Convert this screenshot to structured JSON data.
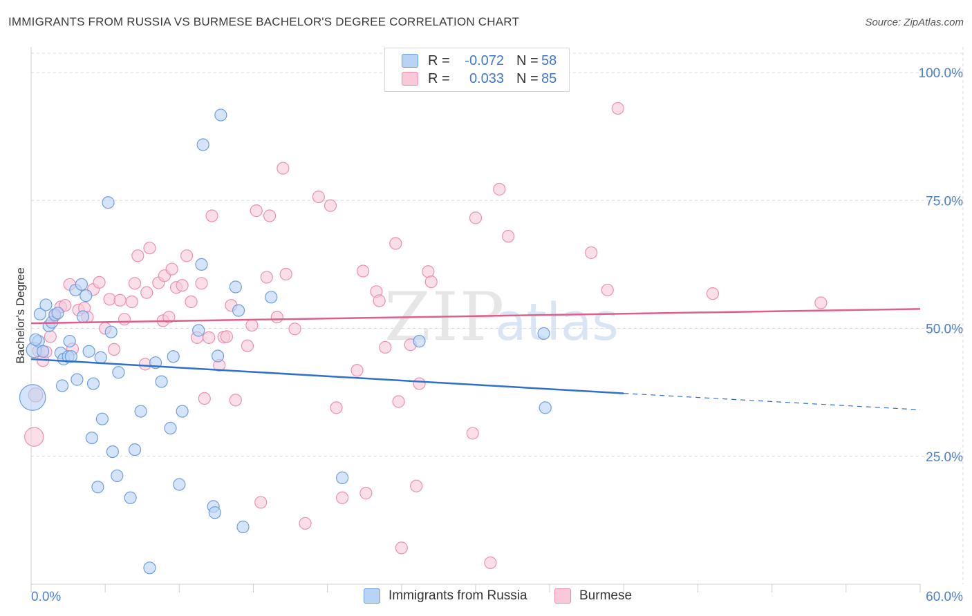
{
  "title": "IMMIGRANTS FROM RUSSIA VS BURMESE BACHELOR'S DEGREE CORRELATION CHART",
  "source": "Source: ZipAtlas.com",
  "watermark": {
    "zip": "ZIP",
    "atlas": "atlas"
  },
  "legend": {
    "r_label": "R =",
    "n_label": "N =",
    "rows": [
      {
        "name": "Immigrants from Russia",
        "r": "-0.072",
        "n": "58",
        "fill": "#b9d3f5",
        "stroke": "#6d9de0"
      },
      {
        "name": "Burmese",
        "r": "0.033",
        "n": "85",
        "fill": "#f9c9d8",
        "stroke": "#ec8fae"
      }
    ]
  },
  "colors": {
    "blue_line": "#2e6fcf",
    "pink_line": "#e05e8c",
    "grid": "#d9d9d9",
    "axis_text": "#4a7fd0"
  },
  "chart_data": {
    "type": "scatter",
    "xlabel": "",
    "ylabel": "Bachelor's Degree",
    "xlim": [
      0,
      60
    ],
    "ylim": [
      0,
      105
    ],
    "x_tick_labels": [
      "0.0%",
      "60.0%"
    ],
    "y_ticks": [
      25,
      50,
      75,
      100
    ],
    "y_tick_labels": [
      "25.0%",
      "50.0%",
      "75.0%",
      "100.0%"
    ],
    "series": [
      {
        "name": "Immigrants from Russia",
        "trend": {
          "x0": 0,
          "y0": 44.0,
          "x1": 40,
          "y1": 37.3,
          "dash_to_x": 60,
          "dash_to_y": 34.1
        },
        "points": [
          [
            0.1,
            36.5,
            2.2
          ],
          [
            0.2,
            45.8,
            1.3
          ],
          [
            0.5,
            47.5,
            1
          ],
          [
            0.6,
            52.8,
            1
          ],
          [
            0.8,
            45.5,
            1
          ],
          [
            1.0,
            54.6,
            1
          ],
          [
            1.2,
            50.5,
            1
          ],
          [
            1.4,
            51.2,
            1
          ],
          [
            1.6,
            52.7,
            1
          ],
          [
            1.8,
            53.0,
            1
          ],
          [
            2.0,
            45.2,
            1
          ],
          [
            2.1,
            38.8,
            1
          ],
          [
            2.2,
            44.0,
            1
          ],
          [
            2.5,
            44.5,
            1
          ],
          [
            2.6,
            47.5,
            1
          ],
          [
            2.7,
            44.5,
            1
          ],
          [
            3.0,
            57.5,
            1
          ],
          [
            3.1,
            40.0,
            1
          ],
          [
            3.4,
            58.6,
            1
          ],
          [
            3.5,
            52.3,
            1
          ],
          [
            3.7,
            56.4,
            1
          ],
          [
            3.9,
            45.5,
            1
          ],
          [
            4.1,
            28.6,
            1
          ],
          [
            4.2,
            39.2,
            1
          ],
          [
            4.5,
            19.0,
            1
          ],
          [
            4.7,
            44.3,
            1
          ],
          [
            4.8,
            32.3,
            1
          ],
          [
            5.2,
            74.6,
            1
          ],
          [
            5.4,
            49.3,
            1
          ],
          [
            5.5,
            25.9,
            1
          ],
          [
            5.8,
            21.2,
            1
          ],
          [
            5.9,
            41.4,
            1
          ],
          [
            6.7,
            16.9,
            1
          ],
          [
            7.0,
            26.3,
            1
          ],
          [
            7.4,
            33.8,
            1
          ],
          [
            8.0,
            3.2,
            1
          ],
          [
            8.4,
            43.3,
            1
          ],
          [
            8.8,
            39.6,
            1
          ],
          [
            9.4,
            30.5,
            1
          ],
          [
            9.6,
            44.5,
            1
          ],
          [
            10.0,
            19.5,
            1
          ],
          [
            10.2,
            33.8,
            1
          ],
          [
            11.6,
            85.9,
            1
          ],
          [
            11.5,
            62.5,
            1
          ],
          [
            11.3,
            49.6,
            1
          ],
          [
            12.6,
            44.6,
            1
          ],
          [
            12.3,
            15.2,
            1
          ],
          [
            12.4,
            14.0,
            1
          ],
          [
            12.8,
            91.7,
            1
          ],
          [
            13.8,
            58.1,
            1
          ],
          [
            14.0,
            53.5,
            1
          ],
          [
            14.3,
            11.2,
            1
          ],
          [
            16.2,
            56.1,
            1
          ],
          [
            21.0,
            20.8,
            1
          ],
          [
            26.2,
            47.5,
            1
          ],
          [
            34.6,
            49.0,
            1
          ],
          [
            34.7,
            34.5,
            1
          ],
          [
            0.3,
            47.8,
            1
          ]
        ]
      },
      {
        "name": "Burmese",
        "trend": {
          "x0": 0,
          "y0": 51.0,
          "x1": 60,
          "y1": 53.8
        },
        "points": [
          [
            0.2,
            28.8,
            1.6
          ],
          [
            0.3,
            37.0,
            1.2
          ],
          [
            0.5,
            45.6,
            1
          ],
          [
            0.8,
            43.7,
            1
          ],
          [
            1.0,
            45.4,
            1
          ],
          [
            1.3,
            48.4,
            1
          ],
          [
            1.6,
            52.5,
            1
          ],
          [
            2.0,
            54.2,
            1
          ],
          [
            2.3,
            54.5,
            1
          ],
          [
            2.6,
            58.6,
            1
          ],
          [
            2.8,
            46.0,
            1
          ],
          [
            3.2,
            53.6,
            1
          ],
          [
            3.6,
            54.0,
            1
          ],
          [
            3.8,
            52.2,
            1
          ],
          [
            4.2,
            57.6,
            1
          ],
          [
            4.6,
            59.0,
            1
          ],
          [
            5.0,
            50.0,
            1
          ],
          [
            5.3,
            55.7,
            1
          ],
          [
            5.6,
            45.9,
            1
          ],
          [
            6.0,
            55.5,
            1
          ],
          [
            6.3,
            51.8,
            1
          ],
          [
            6.8,
            55.2,
            1
          ],
          [
            7.0,
            58.8,
            1
          ],
          [
            7.2,
            64.2,
            1
          ],
          [
            7.7,
            43.0,
            1
          ],
          [
            7.8,
            57.0,
            1
          ],
          [
            8.0,
            65.7,
            1
          ],
          [
            8.6,
            58.9,
            1
          ],
          [
            8.9,
            51.5,
            1
          ],
          [
            9.0,
            60.3,
            1
          ],
          [
            9.3,
            52.2,
            1
          ],
          [
            9.5,
            61.6,
            1
          ],
          [
            9.8,
            58.0,
            1
          ],
          [
            10.2,
            58.4,
            1
          ],
          [
            10.5,
            64.2,
            1
          ],
          [
            10.8,
            55.2,
            1
          ],
          [
            11.2,
            48.2,
            1
          ],
          [
            11.5,
            58.8,
            1
          ],
          [
            11.7,
            36.3,
            1
          ],
          [
            12.0,
            48.2,
            1
          ],
          [
            12.2,
            72.0,
            1
          ],
          [
            12.7,
            42.8,
            1
          ],
          [
            13.0,
            48.3,
            1
          ],
          [
            13.2,
            48.4,
            1
          ],
          [
            13.5,
            54.5,
            1
          ],
          [
            13.8,
            36.0,
            1
          ],
          [
            14.6,
            46.6,
            1
          ],
          [
            14.9,
            50.6,
            1
          ],
          [
            15.2,
            73.0,
            1
          ],
          [
            15.5,
            16.0,
            1
          ],
          [
            15.9,
            60.0,
            1
          ],
          [
            16.1,
            72.0,
            1
          ],
          [
            16.6,
            52.2,
            1
          ],
          [
            17.2,
            60.6,
            1
          ],
          [
            17.8,
            49.9,
            1
          ],
          [
            17.0,
            81.3,
            1
          ],
          [
            18.5,
            11.9,
            1
          ],
          [
            19.4,
            75.7,
            1
          ],
          [
            20.2,
            74.0,
            1
          ],
          [
            20.6,
            34.5,
            1
          ],
          [
            21.0,
            16.9,
            1
          ],
          [
            22.0,
            41.8,
            1
          ],
          [
            22.4,
            61.2,
            1
          ],
          [
            22.6,
            17.8,
            1
          ],
          [
            23.3,
            57.2,
            1
          ],
          [
            23.5,
            55.4,
            1
          ],
          [
            23.9,
            46.3,
            1
          ],
          [
            24.6,
            66.6,
            1
          ],
          [
            24.8,
            35.7,
            1
          ],
          [
            25.0,
            7.1,
            1
          ],
          [
            25.6,
            46.8,
            1
          ],
          [
            26.0,
            19.2,
            1
          ],
          [
            26.2,
            39.2,
            1
          ],
          [
            26.8,
            61.1,
            1
          ],
          [
            27.0,
            59.1,
            1
          ],
          [
            29.8,
            29.5,
            1
          ],
          [
            30.0,
            71.6,
            1
          ],
          [
            31.0,
            4.2,
            1
          ],
          [
            31.6,
            77.2,
            1
          ],
          [
            32.2,
            68.0,
            1
          ],
          [
            37.8,
            64.8,
            1
          ],
          [
            38.9,
            57.5,
            1
          ],
          [
            39.6,
            93.0,
            1
          ],
          [
            46.0,
            56.8,
            1
          ],
          [
            53.3,
            55.0,
            1
          ]
        ]
      }
    ]
  }
}
